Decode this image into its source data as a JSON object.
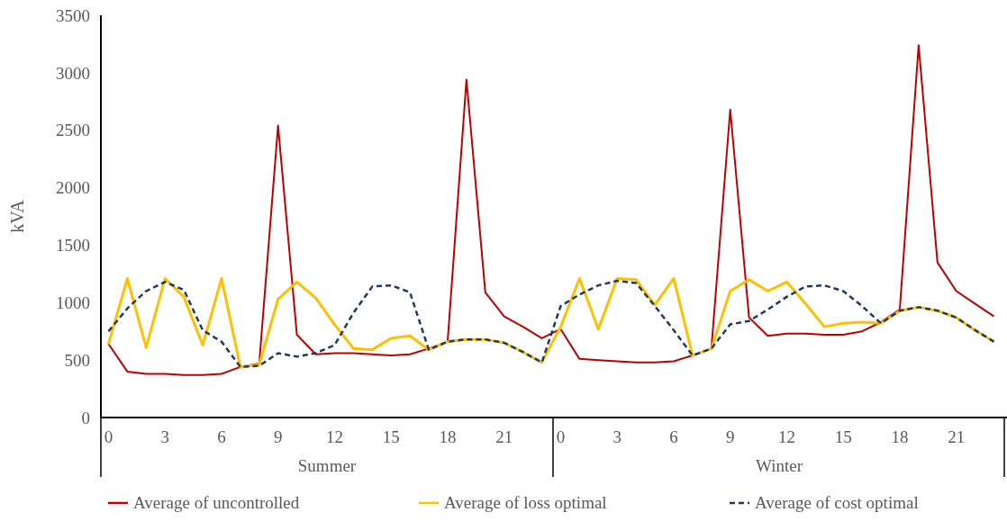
{
  "chart_data": {
    "type": "line",
    "ylabel": "kVA",
    "categories": [
      "0",
      null,
      null,
      "3",
      null,
      null,
      "6",
      null,
      null,
      "9",
      null,
      null,
      "12",
      null,
      null,
      "15",
      null,
      null,
      "18",
      null,
      null,
      "21",
      null,
      null,
      "0",
      null,
      null,
      "3",
      null,
      null,
      "6",
      null,
      null,
      "9",
      null,
      null,
      "12",
      null,
      null,
      "15",
      null,
      null,
      "18",
      null,
      null,
      "21",
      null,
      null
    ],
    "annotations": [
      "Summer",
      "Winter"
    ],
    "ylim": [
      0,
      3500
    ],
    "yticks": [
      0,
      500,
      1000,
      1500,
      2000,
      2500,
      3000,
      3500
    ],
    "grid": false,
    "legend": "bottom",
    "marker": "none",
    "series": [
      {
        "name": "Average of uncontrolled",
        "color": "#c00000",
        "line_style": "solid",
        "values": [
          640,
          400,
          380,
          380,
          370,
          370,
          380,
          440,
          470,
          2540,
          720,
          550,
          560,
          560,
          550,
          540,
          550,
          600,
          660,
          2940,
          1090,
          880,
          790,
          690,
          770,
          510,
          500,
          490,
          480,
          480,
          490,
          540,
          600,
          2680,
          870,
          710,
          730,
          730,
          720,
          720,
          750,
          830,
          940,
          3240,
          1350,
          1100,
          990,
          880
        ]
      },
      {
        "name": "Average of loss optimal",
        "color": "#ffc000",
        "line_style": "solid",
        "values": [
          640,
          1210,
          610,
          1210,
          1050,
          630,
          1210,
          440,
          460,
          1030,
          1180,
          1040,
          810,
          600,
          590,
          690,
          710,
          590,
          660,
          680,
          680,
          650,
          570,
          480,
          790,
          1210,
          770,
          1210,
          1200,
          980,
          1210,
          540,
          600,
          1100,
          1200,
          1100,
          1180,
          990,
          790,
          820,
          830,
          820,
          930,
          960,
          930,
          870,
          760,
          660
        ]
      },
      {
        "name": "Average of cost optimal",
        "color": "#203864",
        "line_style": "dashed",
        "values": [
          750,
          950,
          1100,
          1180,
          1110,
          760,
          660,
          440,
          450,
          560,
          530,
          560,
          630,
          910,
          1140,
          1150,
          1090,
          590,
          660,
          680,
          680,
          650,
          570,
          480,
          970,
          1070,
          1150,
          1190,
          1170,
          970,
          760,
          540,
          600,
          810,
          840,
          940,
          1050,
          1140,
          1150,
          1100,
          970,
          820,
          930,
          960,
          930,
          870,
          760,
          660
        ]
      }
    ]
  }
}
